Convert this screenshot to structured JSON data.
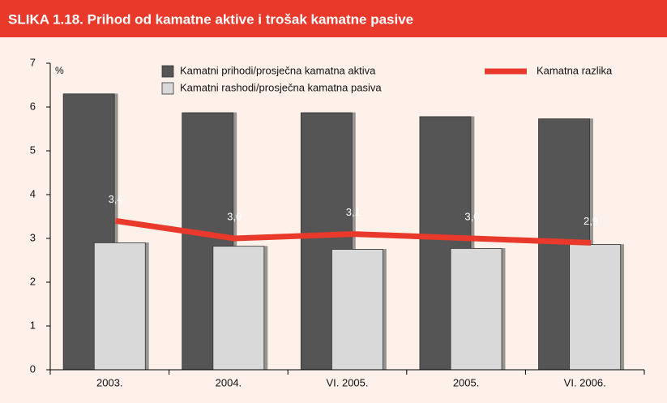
{
  "chart_data": {
    "type": "bar_line",
    "title": "SLIKA 1.18. Prihod od kamatne aktive i trošak kamatne pasive",
    "y_unit": "%",
    "categories": [
      "2003.",
      "2004.",
      "VI. 2005.",
      "2005.",
      "VI. 2006."
    ],
    "series": [
      {
        "name": "Kamatni prihodi/prosječna kamatna aktiva",
        "type": "bar",
        "color": "#555555",
        "values": [
          6.3,
          5.87,
          5.87,
          5.78,
          5.73
        ]
      },
      {
        "name": "Kamatni rashodi/prosječna kamatna pasiva",
        "type": "bar",
        "color": "#d9d9d9",
        "values": [
          2.9,
          2.82,
          2.75,
          2.77,
          2.86
        ]
      },
      {
        "name": "Kamatna razlika",
        "type": "line",
        "color": "#e8392b",
        "values": [
          3.4,
          3.0,
          3.1,
          3.0,
          2.9
        ],
        "value_labels": [
          "3,4",
          "3,0",
          "3,1",
          "3,0",
          "2,9"
        ]
      }
    ],
    "ylim": [
      0,
      7
    ],
    "yticks": [
      0,
      1,
      2,
      3,
      4,
      5,
      6,
      7
    ],
    "grid": false
  }
}
